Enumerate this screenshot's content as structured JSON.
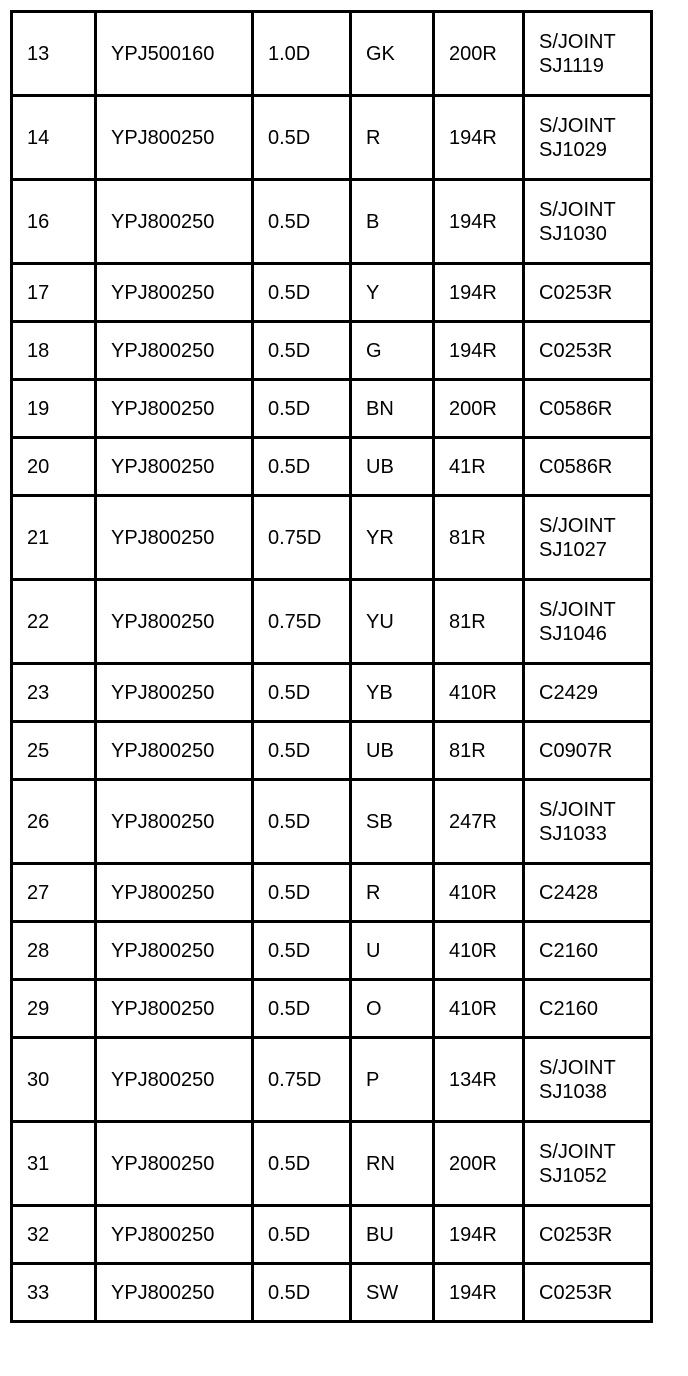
{
  "rows": [
    [
      "13",
      "YPJ500160",
      "1.0D",
      "GK",
      "200R",
      "S/JOINT\nSJ1119"
    ],
    [
      "14",
      "YPJ800250",
      "0.5D",
      "R",
      "194R",
      "S/JOINT\nSJ1029"
    ],
    [
      "16",
      "YPJ800250",
      "0.5D",
      "B",
      "194R",
      "S/JOINT\nSJ1030"
    ],
    [
      "17",
      "YPJ800250",
      "0.5D",
      "Y",
      "194R",
      "C0253R"
    ],
    [
      "18",
      "YPJ800250",
      "0.5D",
      "G",
      "194R",
      "C0253R"
    ],
    [
      "19",
      "YPJ800250",
      "0.5D",
      "BN",
      "200R",
      "C0586R"
    ],
    [
      "20",
      "YPJ800250",
      "0.5D",
      "UB",
      "41R",
      "C0586R"
    ],
    [
      "21",
      "YPJ800250",
      "0.75D",
      "YR",
      "81R",
      "S/JOINT\nSJ1027"
    ],
    [
      "22",
      "YPJ800250",
      "0.75D",
      "YU",
      "81R",
      "S/JOINT\nSJ1046"
    ],
    [
      "23",
      "YPJ800250",
      "0.5D",
      "YB",
      "410R",
      "C2429"
    ],
    [
      "25",
      "YPJ800250",
      "0.5D",
      "UB",
      "81R",
      "C0907R"
    ],
    [
      "26",
      "YPJ800250",
      "0.5D",
      "SB",
      "247R",
      "S/JOINT\nSJ1033"
    ],
    [
      "27",
      "YPJ800250",
      "0.5D",
      "R",
      "410R",
      "C2428"
    ],
    [
      "28",
      "YPJ800250",
      "0.5D",
      "U",
      "410R",
      "C2160"
    ],
    [
      "29",
      "YPJ800250",
      "0.5D",
      "O",
      "410R",
      "C2160"
    ],
    [
      "30",
      "YPJ800250",
      "0.75D",
      "P",
      "134R",
      "S/JOINT\nSJ1038"
    ],
    [
      "31",
      "YPJ800250",
      "0.5D",
      "RN",
      "200R",
      "S/JOINT\nSJ1052"
    ],
    [
      "32",
      "YPJ800250",
      "0.5D",
      "BU",
      "194R",
      "C0253R"
    ],
    [
      "33",
      "YPJ800250",
      "0.5D",
      "SW",
      "194R",
      "C0253R"
    ]
  ]
}
